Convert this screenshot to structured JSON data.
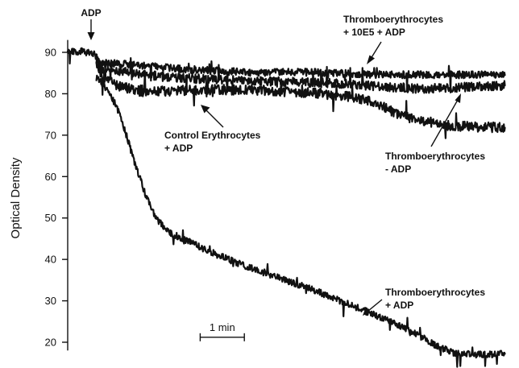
{
  "chart_data": {
    "type": "line",
    "title": "",
    "xlabel": "",
    "ylabel": "Optical Density",
    "ylim": [
      18,
      93
    ],
    "xlim": [
      0,
      10
    ],
    "y_ticks": [
      20,
      30,
      40,
      50,
      60,
      70,
      80,
      90
    ],
    "grid": false,
    "legend": "none",
    "x_units": "minutes (1 min scale bar)",
    "scale_bar": {
      "label": "1 min",
      "from": 3.0,
      "to": 4.0,
      "y": 21.2
    },
    "series": [
      {
        "name": "Thromboerythrocytes + 10E5 + ADP",
        "noise": 0.9,
        "points": [
          [
            0,
            90
          ],
          [
            0.35,
            90.3
          ],
          [
            0.55,
            89.6
          ],
          [
            0.6,
            89.5
          ],
          [
            0.75,
            87.5
          ],
          [
            1.5,
            87
          ],
          [
            2.5,
            86
          ],
          [
            4,
            85.2
          ],
          [
            5.5,
            85.2
          ],
          [
            7,
            84.6
          ],
          [
            8.5,
            84.6
          ],
          [
            9.9,
            84.5
          ]
        ]
      },
      {
        "name": "Thromboerythrocytes - ADP",
        "noise": 1.1,
        "points": [
          [
            0.65,
            88
          ],
          [
            0.8,
            86
          ],
          [
            1.5,
            85
          ],
          [
            2.2,
            84
          ],
          [
            3,
            83.6
          ],
          [
            4.5,
            83
          ],
          [
            6,
            82.6
          ],
          [
            7,
            81.8
          ],
          [
            8,
            81.2
          ],
          [
            8.7,
            81.5
          ],
          [
            9.9,
            82
          ]
        ]
      },
      {
        "name": "Control Erythrocytes + ADP",
        "noise": 1.2,
        "points": [
          [
            0.65,
            87
          ],
          [
            0.8,
            84
          ],
          [
            1.1,
            82
          ],
          [
            1.7,
            80.4
          ],
          [
            2.5,
            80.8
          ],
          [
            3.5,
            81
          ],
          [
            4.5,
            80.8
          ],
          [
            5.5,
            80.2
          ],
          [
            6.3,
            79.5
          ],
          [
            6.9,
            78
          ],
          [
            7.5,
            75
          ],
          [
            8.1,
            73
          ],
          [
            8.7,
            72.2
          ],
          [
            9.9,
            71.8
          ]
        ]
      },
      {
        "name": "Thromboerythrocytes + ADP",
        "noise": 0.8,
        "points": [
          [
            0.65,
            84
          ],
          [
            0.9,
            81
          ],
          [
            1.1,
            77
          ],
          [
            1.3,
            71
          ],
          [
            1.5,
            64
          ],
          [
            1.75,
            56
          ],
          [
            2.0,
            50
          ],
          [
            2.3,
            46.5
          ],
          [
            2.8,
            44
          ],
          [
            3.3,
            41.5
          ],
          [
            4.0,
            38.5
          ],
          [
            4.8,
            35.5
          ],
          [
            5.6,
            32.5
          ],
          [
            6.4,
            29
          ],
          [
            7.2,
            25.5
          ],
          [
            7.8,
            22.5
          ],
          [
            8.3,
            19.5
          ],
          [
            8.7,
            17.5
          ],
          [
            9.2,
            17
          ],
          [
            9.9,
            17.2
          ]
        ]
      }
    ],
    "annotations": [
      {
        "label": "ADP",
        "kind": "marker"
      },
      {
        "label": "Thromboerythrocytes",
        "label2": "+ 10E5 + ADP"
      },
      {
        "label": "Control Erythrocytes",
        "label2": "+ ADP"
      },
      {
        "label": "Thromboerythrocytes",
        "label2": "- ADP"
      },
      {
        "label": "Thromboerythrocytes",
        "label2": "+ ADP"
      }
    ]
  }
}
